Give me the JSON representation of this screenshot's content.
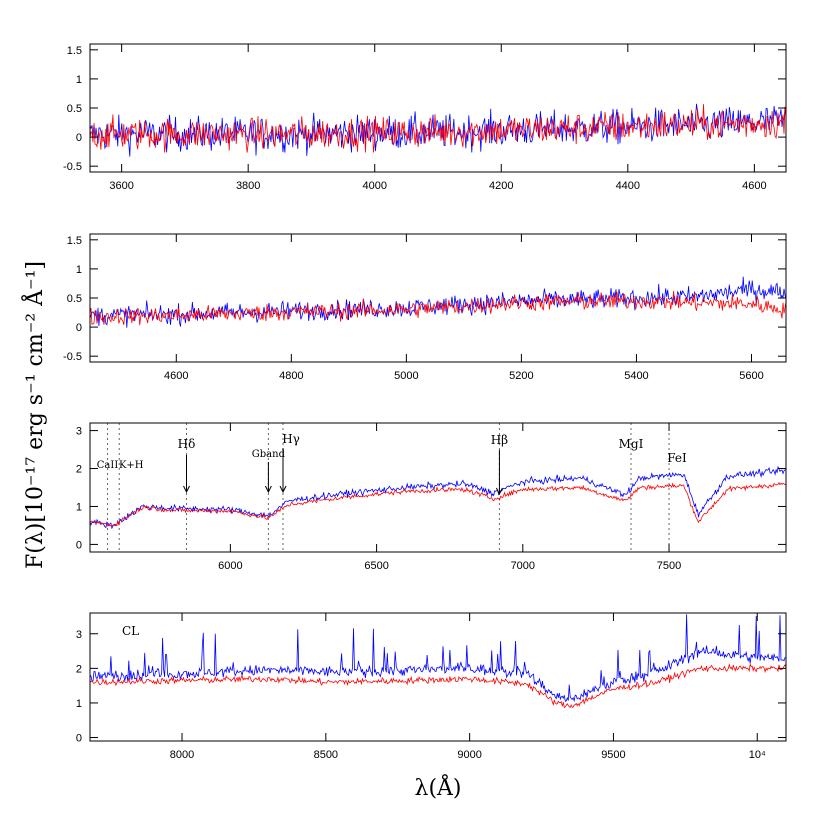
{
  "chart_data": {
    "type": "line",
    "ylabel": "F(λ)[10⁻¹⁷ erg s⁻¹ cm⁻² Å⁻¹]",
    "xlabel": "λ(Å)",
    "series_colors": {
      "blue": "#0000ff",
      "red": "#ff0000"
    },
    "panels": [
      {
        "xlim": [
          3550,
          4650
        ],
        "ylim": [
          -0.6,
          1.6
        ],
        "xticks": [
          3600,
          3800,
          4000,
          4200,
          4400,
          4600
        ],
        "xtick_labels": [
          "3600",
          "3800",
          "4000",
          "4200",
          "4400",
          "4600"
        ],
        "yticks": [
          -0.5,
          0,
          0.5,
          1,
          1.5
        ],
        "ytick_labels": [
          "-0.5",
          "0",
          "0.5",
          "1",
          "1.5"
        ],
        "blue": {
          "x": [
            3550,
            3650,
            3750,
            3850,
            3950,
            4050,
            4150,
            4250,
            4350,
            4450,
            4550,
            4650
          ],
          "y": [
            0.05,
            0.05,
            0.05,
            0.05,
            0.07,
            0.08,
            0.1,
            0.13,
            0.16,
            0.2,
            0.22,
            0.28
          ]
        },
        "red": {
          "x": [
            3550,
            3650,
            3750,
            3850,
            3950,
            4050,
            4150,
            4250,
            4350,
            4450,
            4550,
            4650
          ],
          "y": [
            0.05,
            0.05,
            0.05,
            0.05,
            0.07,
            0.08,
            0.1,
            0.13,
            0.16,
            0.2,
            0.22,
            0.26
          ]
        }
      },
      {
        "xlim": [
          4450,
          5660
        ],
        "ylim": [
          -0.6,
          1.6
        ],
        "xticks": [
          4600,
          4800,
          5000,
          5200,
          5400,
          5600
        ],
        "xtick_labels": [
          "4600",
          "4800",
          "5000",
          "5200",
          "5400",
          "5600"
        ],
        "yticks": [
          -0.5,
          0,
          0.5,
          1,
          1.5
        ],
        "ytick_labels": [
          "-0.5",
          "0",
          "0.5",
          "1",
          "1.5"
        ],
        "blue": {
          "x": [
            4450,
            4600,
            4800,
            5000,
            5200,
            5300,
            5400,
            5500,
            5600,
            5660
          ],
          "y": [
            0.2,
            0.22,
            0.28,
            0.33,
            0.45,
            0.47,
            0.5,
            0.52,
            0.65,
            0.6
          ]
        },
        "red": {
          "x": [
            4450,
            4600,
            4800,
            5000,
            5200,
            5300,
            5400,
            5500,
            5600,
            5660
          ],
          "y": [
            0.18,
            0.2,
            0.26,
            0.3,
            0.42,
            0.44,
            0.45,
            0.42,
            0.4,
            0.3
          ]
        }
      },
      {
        "xlim": [
          5520,
          7900
        ],
        "ylim": [
          -0.2,
          3.2
        ],
        "xticks": [
          6000,
          6500,
          7000,
          7500
        ],
        "xtick_labels": [
          "6000",
          "6500",
          "7000",
          "7500"
        ],
        "yticks": [
          0,
          1,
          2,
          3
        ],
        "ytick_labels": [
          "0",
          "1",
          "2",
          "3"
        ],
        "blue": {
          "x": [
            5520,
            5600,
            5700,
            5800,
            6000,
            6130,
            6200,
            6400,
            6600,
            6800,
            6900,
            7000,
            7200,
            7350,
            7400,
            7550,
            7600,
            7700,
            7900
          ],
          "y": [
            0.6,
            0.5,
            1.0,
            0.95,
            0.92,
            0.75,
            1.15,
            1.35,
            1.5,
            1.6,
            1.35,
            1.65,
            1.75,
            1.3,
            1.75,
            1.85,
            0.8,
            1.8,
            1.95
          ]
        },
        "red": {
          "x": [
            5520,
            5600,
            5700,
            5800,
            6000,
            6130,
            6200,
            6400,
            6600,
            6800,
            6900,
            7000,
            7200,
            7350,
            7400,
            7550,
            7600,
            7700,
            7900
          ],
          "y": [
            0.6,
            0.5,
            0.98,
            0.9,
            0.88,
            0.7,
            1.05,
            1.25,
            1.4,
            1.45,
            1.2,
            1.45,
            1.5,
            1.15,
            1.5,
            1.55,
            0.6,
            1.45,
            1.6
          ]
        },
        "annotations": [
          {
            "text": "CaII",
            "x": 5580
          },
          {
            "text": "K+H",
            "x": 5620
          },
          {
            "text": "Hδ",
            "x": 5850
          },
          {
            "text": "Gband",
            "x": 6130
          },
          {
            "text": "Hγ",
            "x": 6180
          },
          {
            "text": "Hβ",
            "x": 6920
          },
          {
            "text": "MgI",
            "x": 7370
          },
          {
            "text": "FeI",
            "x": 7500
          }
        ]
      },
      {
        "xlim": [
          7680,
          10100
        ],
        "ylim": [
          -0.1,
          3.6
        ],
        "xticks": [
          8000,
          8500,
          9000,
          9500,
          10000
        ],
        "xtick_labels": [
          "8000",
          "8500",
          "9000",
          "9500",
          "10⁴"
        ],
        "yticks": [
          0,
          1,
          2,
          3
        ],
        "ytick_labels": [
          "0",
          "1",
          "2",
          "3"
        ],
        "label": "CL",
        "blue": {
          "x": [
            7680,
            8000,
            8300,
            8500,
            8800,
            9000,
            9200,
            9300,
            9350,
            9500,
            9650,
            9800,
            10000
          ],
          "y": [
            1.75,
            1.85,
            1.95,
            1.9,
            1.95,
            2.0,
            1.85,
            1.2,
            1.1,
            1.6,
            1.9,
            2.5,
            2.3
          ]
        },
        "red": {
          "x": [
            7680,
            8000,
            8300,
            8500,
            8800,
            9000,
            9200,
            9300,
            9350,
            9500,
            9650,
            9800,
            10000
          ],
          "y": [
            1.6,
            1.65,
            1.7,
            1.6,
            1.65,
            1.7,
            1.55,
            1.0,
            0.9,
            1.4,
            1.6,
            2.0,
            2.0
          ]
        }
      }
    ]
  }
}
